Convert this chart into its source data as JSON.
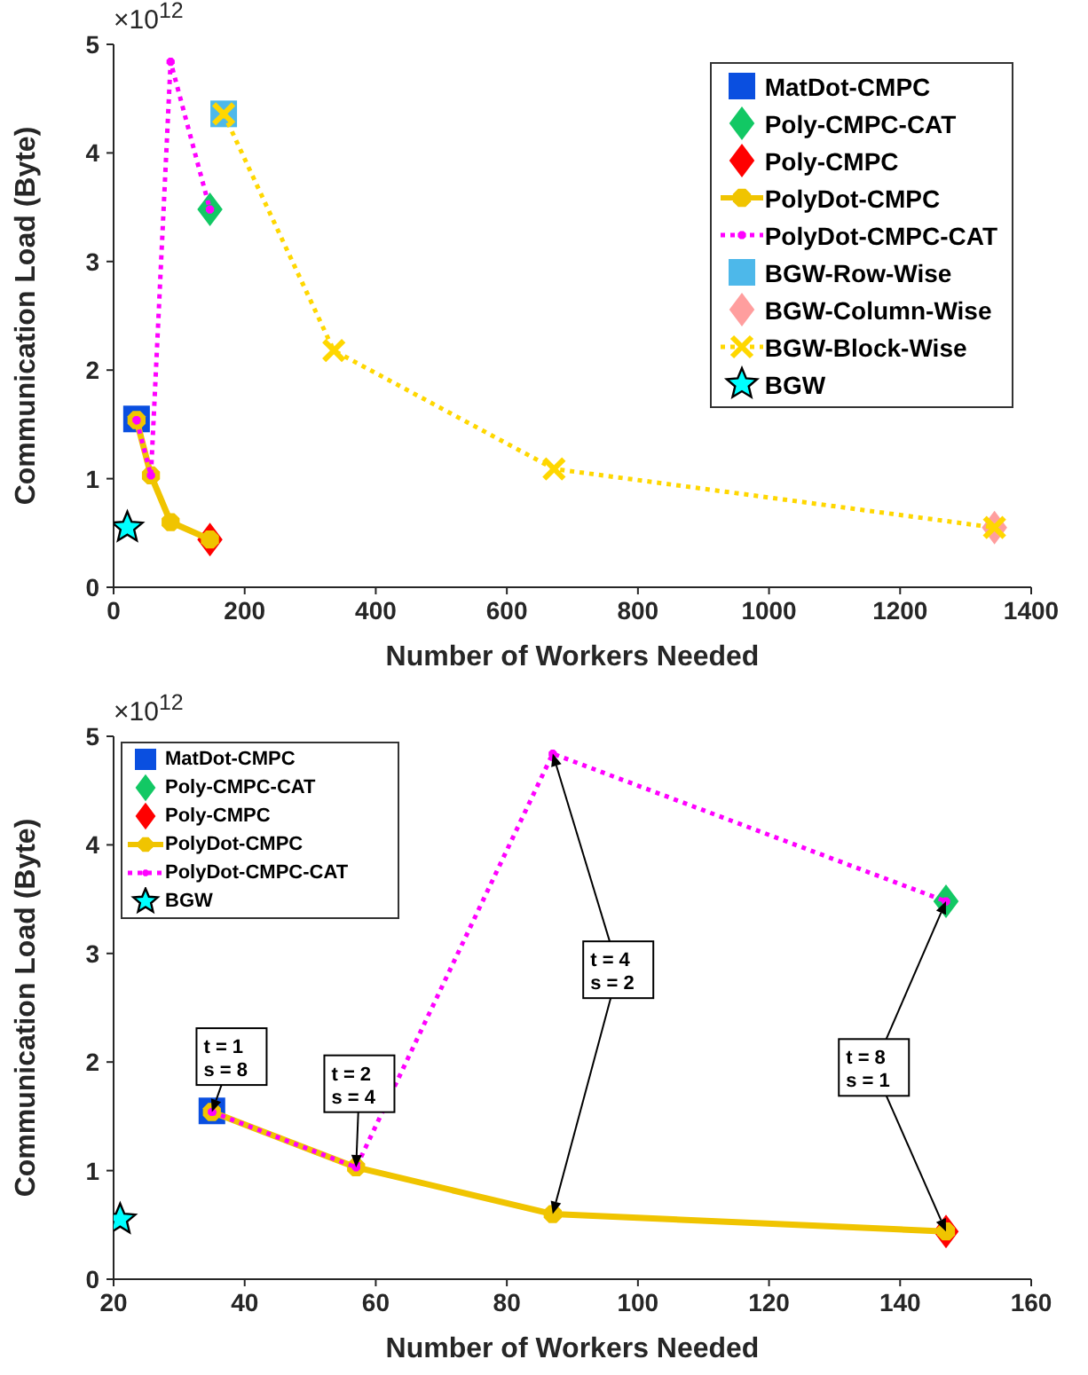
{
  "chart_data": [
    {
      "type": "scatter",
      "xlabel": "Number of Workers Needed",
      "ylabel": "Communication Load (Byte)",
      "annotations": [
        "×10$^{12}$"
      ],
      "xlim": [
        0,
        1400
      ],
      "xticks": [
        0,
        200,
        400,
        600,
        800,
        1000,
        1200,
        1400
      ],
      "ylim": [
        0,
        5
      ],
      "yticks": [
        0,
        1,
        2,
        3,
        4,
        5
      ],
      "legend": "top right",
      "series": [
        {
          "name": "MatDot-CMPC",
          "type": "scatter",
          "marker": "square",
          "color": "#0a4fe0",
          "x": [
            35
          ],
          "values": [
            1.55
          ]
        },
        {
          "name": "Poly-CMPC-CAT",
          "type": "scatter",
          "marker": "diamond",
          "color": "#12c864",
          "x": [
            147
          ],
          "values": [
            3.48
          ]
        },
        {
          "name": "Poly-CMPC",
          "type": "scatter",
          "marker": "diamond",
          "color": "#ff0000",
          "x": [
            147
          ],
          "values": [
            0.44
          ]
        },
        {
          "name": "PolyDot-CMPC",
          "type": "line",
          "marker": "circle",
          "line_style": "solid",
          "color": "#f0c400",
          "x": [
            35,
            57,
            87,
            147
          ],
          "values": [
            1.54,
            1.03,
            0.6,
            0.44
          ]
        },
        {
          "name": "PolyDot-CMPC-CAT",
          "type": "line",
          "marker": "circle",
          "line_style": "dotted",
          "color": "#ff00ff",
          "x": [
            35,
            57,
            87,
            147
          ],
          "values": [
            1.54,
            1.03,
            4.84,
            3.48
          ]
        },
        {
          "name": "BGW-Row-Wise",
          "type": "scatter",
          "marker": "square",
          "color": "#4db8ea",
          "x": [
            168
          ],
          "values": [
            4.36
          ]
        },
        {
          "name": "BGW-Column-Wise",
          "type": "scatter",
          "marker": "diamond",
          "color": "#ff9e9e",
          "x": [
            1344
          ],
          "values": [
            0.55
          ]
        },
        {
          "name": "BGW-Block-Wise",
          "type": "line",
          "marker": "cross",
          "line_style": "dotted",
          "color": "#ffd700",
          "x": [
            168,
            336,
            672,
            1344
          ],
          "values": [
            4.36,
            2.18,
            1.09,
            0.55
          ]
        },
        {
          "name": "BGW",
          "type": "scatter",
          "marker": "star",
          "color": "#00ffff",
          "x": [
            21
          ],
          "values": [
            0.55
          ]
        }
      ]
    },
    {
      "type": "scatter",
      "xlabel": "Number of Workers Needed",
      "ylabel": "Communication Load (Byte)",
      "annotations": [
        "×10$^{12}$",
        {
          "text": "t = 1\ns = 8",
          "x": 38,
          "y": 2.05
        },
        {
          "text": "t = 2\ns = 4",
          "x": 57.5,
          "y": 1.8
        },
        {
          "text": "t = 4\ns = 2",
          "x": 97,
          "y": 2.85
        },
        {
          "text": "t = 8\ns = 1",
          "x": 136,
          "y": 1.95
        }
      ],
      "xlim": [
        20,
        160
      ],
      "xticks": [
        20,
        40,
        60,
        80,
        100,
        120,
        140,
        160
      ],
      "ylim": [
        0,
        5
      ],
      "yticks": [
        0,
        1,
        2,
        3,
        4,
        5
      ],
      "legend": "top left",
      "series": [
        {
          "name": "MatDot-CMPC",
          "type": "scatter",
          "marker": "square",
          "color": "#0a4fe0",
          "x": [
            35
          ],
          "values": [
            1.55
          ]
        },
        {
          "name": "Poly-CMPC-CAT",
          "type": "scatter",
          "marker": "diamond",
          "color": "#12c864",
          "x": [
            147
          ],
          "values": [
            3.48
          ]
        },
        {
          "name": "Poly-CMPC",
          "type": "scatter",
          "marker": "diamond",
          "color": "#ff0000",
          "x": [
            147
          ],
          "values": [
            0.44
          ]
        },
        {
          "name": "PolyDot-CMPC",
          "type": "line",
          "marker": "circle",
          "line_style": "solid",
          "color": "#f0c400",
          "x": [
            35,
            57,
            87,
            147
          ],
          "values": [
            1.54,
            1.03,
            0.6,
            0.44
          ]
        },
        {
          "name": "PolyDot-CMPC-CAT",
          "type": "line",
          "marker": "circle",
          "line_style": "dotted",
          "color": "#ff00ff",
          "x": [
            35,
            57,
            87,
            147
          ],
          "values": [
            1.54,
            1.03,
            4.84,
            3.48
          ]
        },
        {
          "name": "BGW",
          "type": "scatter",
          "marker": "star",
          "color": "#00ffff",
          "x": [
            21
          ],
          "values": [
            0.55
          ]
        }
      ]
    }
  ]
}
